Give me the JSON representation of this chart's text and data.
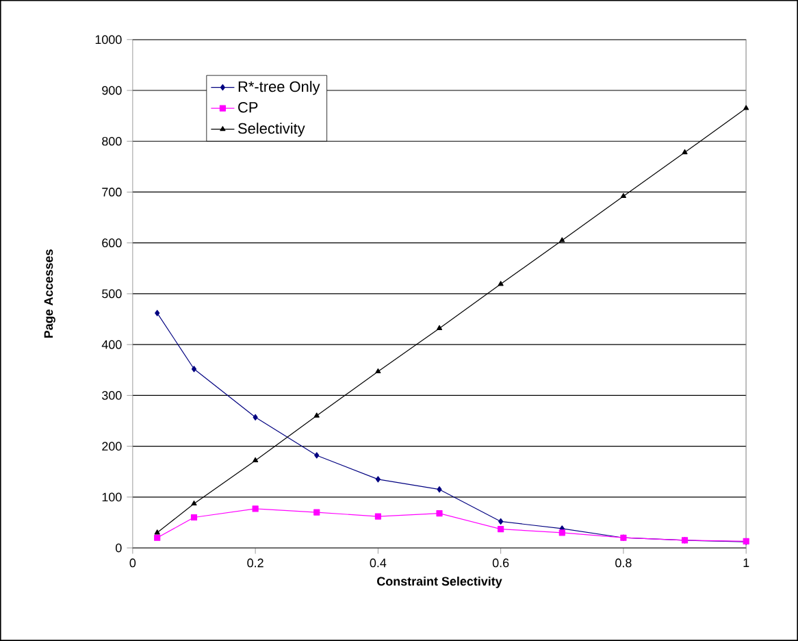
{
  "chart_data": {
    "type": "line",
    "xlabel": "Constraint Selectivity",
    "ylabel": "Page Accesses",
    "x": [
      0.04,
      0.1,
      0.2,
      0.3,
      0.4,
      0.5,
      0.6,
      0.7,
      0.8,
      0.9,
      1.0
    ],
    "series": [
      {
        "name": "R*-tree Only",
        "color": "#000080",
        "marker": "diamond",
        "values": [
          462,
          352,
          257,
          182,
          135,
          115,
          52,
          38,
          20,
          15,
          12
        ]
      },
      {
        "name": "CP",
        "color": "#ff00ff",
        "marker": "square",
        "values": [
          20,
          60,
          77,
          70,
          62,
          68,
          37,
          30,
          20,
          15,
          13
        ]
      },
      {
        "name": "Selectivity",
        "color": "#000000",
        "marker": "triangle",
        "values": [
          30,
          87,
          172,
          260,
          347,
          432,
          519,
          605,
          692,
          778,
          865
        ]
      }
    ],
    "xlim": [
      0,
      1
    ],
    "xticks": [
      0,
      0.2,
      0.4,
      0.6,
      0.8,
      1
    ],
    "ylim": [
      0,
      1000
    ],
    "yticks": [
      0,
      100,
      200,
      300,
      400,
      500,
      600,
      700,
      800,
      900,
      1000
    ],
    "grid": "y",
    "legend": "top left"
  }
}
